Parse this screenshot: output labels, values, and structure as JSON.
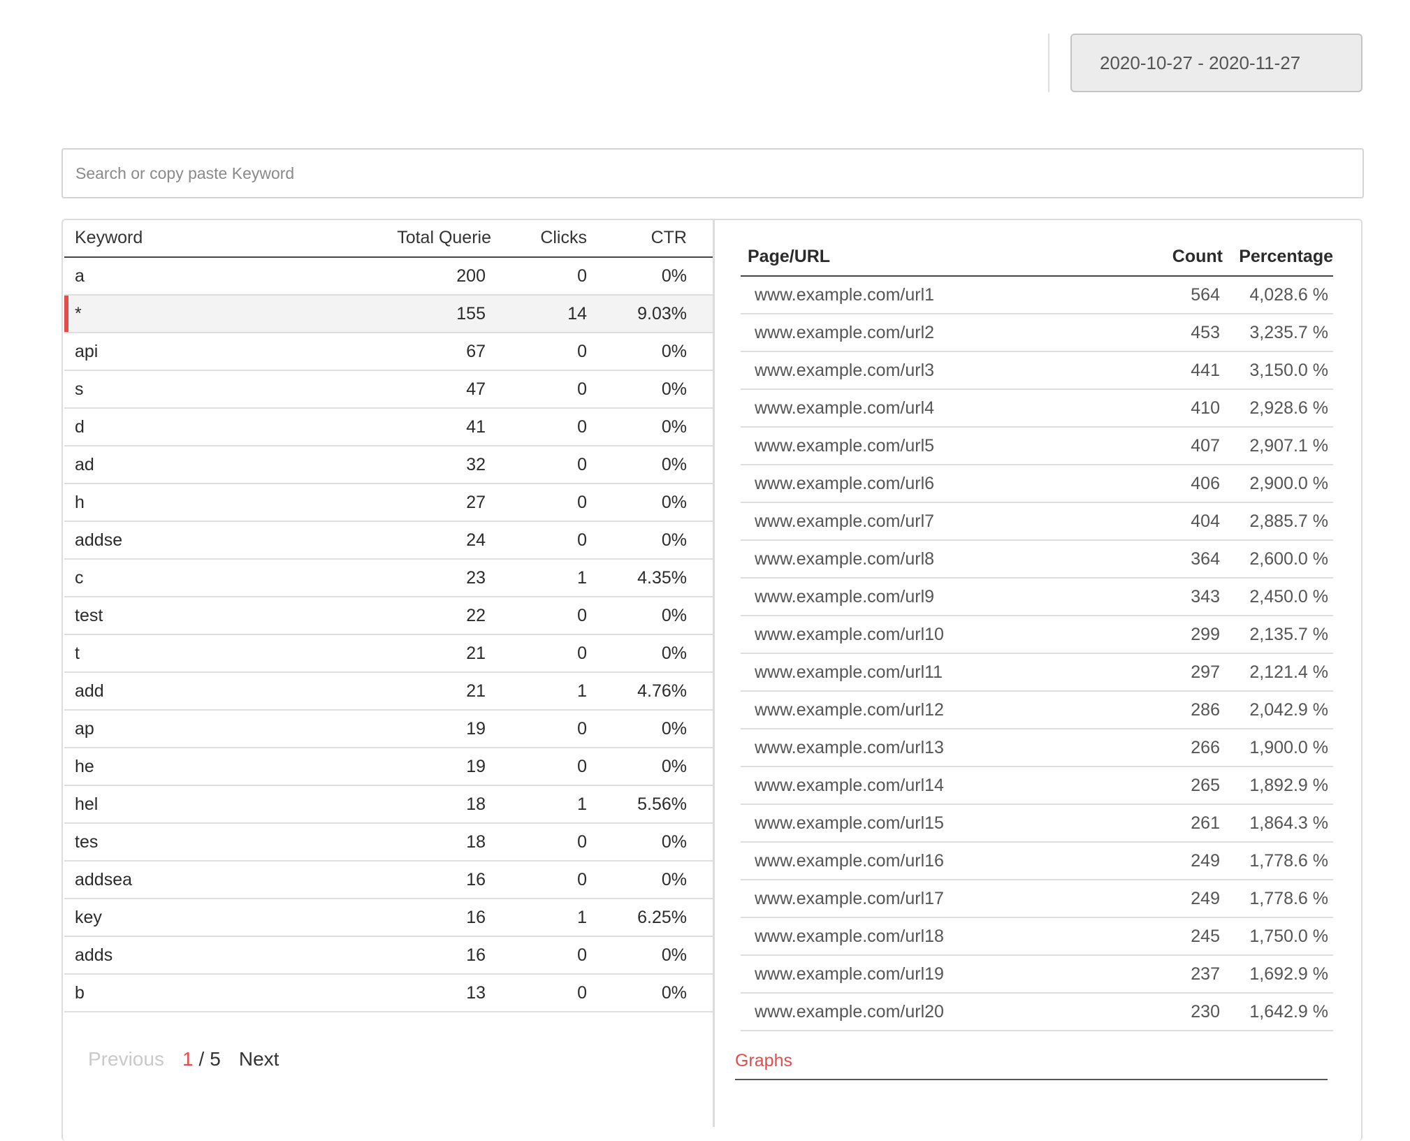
{
  "date_range": "2020-10-27 - 2020-11-27",
  "search": {
    "placeholder": "Search or copy paste Keyword",
    "value": ""
  },
  "keyword_table": {
    "headers": {
      "keyword": "Keyword",
      "total_queries": "Total Querie",
      "clicks": "Clicks",
      "ctr": "CTR"
    },
    "selected_row": 1,
    "rows": [
      {
        "keyword": "a",
        "total_queries": "200",
        "clicks": "0",
        "ctr": "0%"
      },
      {
        "keyword": "*",
        "total_queries": "155",
        "clicks": "14",
        "ctr": "9.03%"
      },
      {
        "keyword": "api",
        "total_queries": "67",
        "clicks": "0",
        "ctr": "0%"
      },
      {
        "keyword": "s",
        "total_queries": "47",
        "clicks": "0",
        "ctr": "0%"
      },
      {
        "keyword": "d",
        "total_queries": "41",
        "clicks": "0",
        "ctr": "0%"
      },
      {
        "keyword": "ad",
        "total_queries": "32",
        "clicks": "0",
        "ctr": "0%"
      },
      {
        "keyword": "h",
        "total_queries": "27",
        "clicks": "0",
        "ctr": "0%"
      },
      {
        "keyword": "addse",
        "total_queries": "24",
        "clicks": "0",
        "ctr": "0%"
      },
      {
        "keyword": "c",
        "total_queries": "23",
        "clicks": "1",
        "ctr": "4.35%"
      },
      {
        "keyword": "test",
        "total_queries": "22",
        "clicks": "0",
        "ctr": "0%"
      },
      {
        "keyword": "t",
        "total_queries": "21",
        "clicks": "0",
        "ctr": "0%"
      },
      {
        "keyword": "add",
        "total_queries": "21",
        "clicks": "1",
        "ctr": "4.76%"
      },
      {
        "keyword": "ap",
        "total_queries": "19",
        "clicks": "0",
        "ctr": "0%"
      },
      {
        "keyword": "he",
        "total_queries": "19",
        "clicks": "0",
        "ctr": "0%"
      },
      {
        "keyword": "hel",
        "total_queries": "18",
        "clicks": "1",
        "ctr": "5.56%"
      },
      {
        "keyword": "tes",
        "total_queries": "18",
        "clicks": "0",
        "ctr": "0%"
      },
      {
        "keyword": "addsea",
        "total_queries": "16",
        "clicks": "0",
        "ctr": "0%"
      },
      {
        "keyword": "key",
        "total_queries": "16",
        "clicks": "1",
        "ctr": "6.25%"
      },
      {
        "keyword": "adds",
        "total_queries": "16",
        "clicks": "0",
        "ctr": "0%"
      },
      {
        "keyword": "b",
        "total_queries": "13",
        "clicks": "0",
        "ctr": "0%"
      }
    ]
  },
  "pagination": {
    "previous": "Previous",
    "current": "1",
    "separator": "/",
    "total": "5",
    "next": "Next"
  },
  "url_table": {
    "headers": {
      "url": "Page/URL",
      "count": "Count",
      "percentage": "Percentage"
    },
    "rows": [
      {
        "url": "www.example.com/url1",
        "count": "564",
        "percentage": "4,028.6 %"
      },
      {
        "url": "www.example.com/url2",
        "count": "453",
        "percentage": "3,235.7 %"
      },
      {
        "url": "www.example.com/url3",
        "count": "441",
        "percentage": "3,150.0 %"
      },
      {
        "url": "www.example.com/url4",
        "count": "410",
        "percentage": "2,928.6 %"
      },
      {
        "url": "www.example.com/url5",
        "count": "407",
        "percentage": "2,907.1 %"
      },
      {
        "url": "www.example.com/url6",
        "count": "406",
        "percentage": "2,900.0 %"
      },
      {
        "url": "www.example.com/url7",
        "count": "404",
        "percentage": "2,885.7 %"
      },
      {
        "url": "www.example.com/url8",
        "count": "364",
        "percentage": "2,600.0 %"
      },
      {
        "url": "www.example.com/url9",
        "count": "343",
        "percentage": "2,450.0 %"
      },
      {
        "url": "www.example.com/url10",
        "count": "299",
        "percentage": "2,135.7 %"
      },
      {
        "url": "www.example.com/url11",
        "count": "297",
        "percentage": "2,121.4 %"
      },
      {
        "url": "www.example.com/url12",
        "count": "286",
        "percentage": "2,042.9 %"
      },
      {
        "url": "www.example.com/url13",
        "count": "266",
        "percentage": "1,900.0 %"
      },
      {
        "url": "www.example.com/url14",
        "count": "265",
        "percentage": "1,892.9 %"
      },
      {
        "url": "www.example.com/url15",
        "count": "261",
        "percentage": "1,864.3 %"
      },
      {
        "url": "www.example.com/url16",
        "count": "249",
        "percentage": "1,778.6 %"
      },
      {
        "url": "www.example.com/url17",
        "count": "249",
        "percentage": "1,778.6 %"
      },
      {
        "url": "www.example.com/url18",
        "count": "245",
        "percentage": "1,750.0 %"
      },
      {
        "url": "www.example.com/url19",
        "count": "237",
        "percentage": "1,692.9 %"
      },
      {
        "url": "www.example.com/url20",
        "count": "230",
        "percentage": "1,642.9 %"
      }
    ]
  },
  "graphs_link": "Graphs",
  "colors": {
    "accent": "#e84a4a",
    "selected_row_bg": "#f3f3f3",
    "date_button_bg": "#ececec"
  }
}
